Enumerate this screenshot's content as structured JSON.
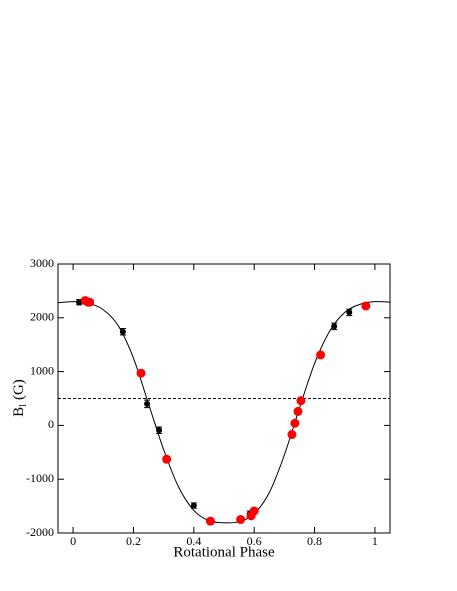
{
  "chart_data": {
    "type": "scatter",
    "x_label": "Rotational Phase",
    "y_label": "B",
    "y_label_sub": "l",
    "y_label_unit": "(G)",
    "xlim": [
      -0.05,
      1.05
    ],
    "ylim": [
      -2000,
      3000
    ],
    "xticks": [
      0,
      0.2,
      0.4,
      0.6,
      0.8,
      1
    ],
    "yticks": [
      -2000,
      -1000,
      0,
      1000,
      2000,
      3000
    ],
    "hline": 500,
    "fit": {
      "color": "#000000",
      "x": [
        -0.05,
        0,
        0.05,
        0.1,
        0.15,
        0.2,
        0.25,
        0.3,
        0.35,
        0.4,
        0.45,
        0.5,
        0.55,
        0.6,
        0.65,
        0.7,
        0.75,
        0.8,
        0.85,
        0.9,
        0.95,
        1.0,
        1.05
      ],
      "values": [
        2280,
        2300,
        2270,
        2150,
        1850,
        1250,
        400,
        -450,
        -1150,
        -1580,
        -1770,
        -1810,
        -1790,
        -1640,
        -1250,
        -550,
        320,
        1150,
        1750,
        2100,
        2250,
        2300,
        2290
      ]
    },
    "series": [
      {
        "color": "#000000",
        "x": [
          0.02,
          0.165,
          0.245,
          0.285,
          0.4,
          0.585,
          0.865,
          0.915
        ],
        "values": [
          2290,
          1740,
          400,
          -90,
          -1490,
          -1650,
          1840,
          2100
        ],
        "errors": [
          50,
          60,
          70,
          60,
          50,
          60,
          60,
          60
        ]
      },
      {
        "color": "#ff0000",
        "x": [
          0.04,
          0.05,
          0.055,
          0.225,
          0.31,
          0.455,
          0.555,
          0.59,
          0.6,
          0.725,
          0.735,
          0.745,
          0.755,
          0.82,
          0.97
        ],
        "values": [
          2320,
          2290,
          2290,
          970,
          -630,
          -1780,
          -1750,
          -1680,
          -1590,
          -170,
          40,
          260,
          460,
          1310,
          2220
        ]
      }
    ]
  }
}
